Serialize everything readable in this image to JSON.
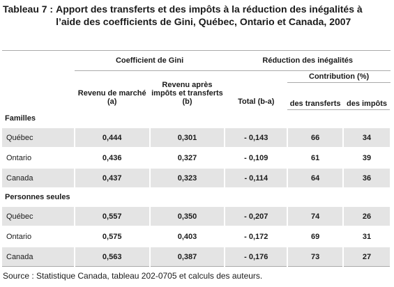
{
  "title": {
    "label": "Tableau 7 :",
    "text": "Apport des transferts et des impôts à la réduction des inégalités à l’aide des coefficients de Gini, Québec, Ontario et Canada, 2007"
  },
  "table": {
    "headers": {
      "gini": "Coefficient de Gini",
      "reduction": "Réduction des inégalités",
      "market": "Revenu de marché (a)",
      "after_tax": "Revenu après impôts et transferts (b)",
      "total": "Total  (b-a)",
      "contribution": "Contribution (%)",
      "transfers": "des transferts",
      "taxes": "des impôts"
    },
    "sections": [
      {
        "name": "Familles",
        "rows": [
          [
            "Québec",
            "0,444",
            "0,301",
            "- 0,143",
            "66",
            "34"
          ],
          [
            "Ontario",
            "0,436",
            "0,327",
            "- 0,109",
            "61",
            "39"
          ],
          [
            "Canada",
            "0,437",
            "0,323",
            "- 0,114",
            "64",
            "36"
          ]
        ]
      },
      {
        "name": "Personnes seules",
        "rows": [
          [
            "Québec",
            "0,557",
            "0,350",
            "- 0,207",
            "74",
            "26"
          ],
          [
            "Ontario",
            "0,575",
            "0,403",
            "- 0,172",
            "69",
            "31"
          ],
          [
            "Canada",
            "0,563",
            "0,387",
            "- 0,176",
            "73",
            "27"
          ]
        ]
      }
    ]
  },
  "source": "Source : Statistique Canada, tableau 202-0705 et calculs des auteurs."
}
